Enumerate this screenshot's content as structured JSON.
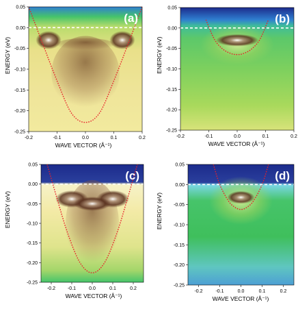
{
  "colors": {
    "fit_curve": "#e8202a",
    "fermi_line": "#ffffff",
    "panel_letter": "#ffffff",
    "colormap": [
      "#1c2b8c",
      "#2f7fd0",
      "#46c46a",
      "#9bd45e",
      "#f0e88a",
      "#8a5a3c",
      "#5a3220",
      "#ffffff"
    ]
  },
  "chart_data": [
    {
      "type": "heatmap",
      "panel": "(a)",
      "xlabel": "WAVE VECTOR (Å⁻¹)",
      "ylabel": "ENERGY (eV)",
      "xlim": [
        -0.2,
        0.2
      ],
      "ylim": [
        -0.25,
        0.05
      ],
      "x_ticks": [
        "-0.2",
        "-0.1",
        "0.0",
        "0.1",
        "0.2"
      ],
      "y_ticks": [
        "0.05",
        "0.00",
        "-0.05",
        "-0.10",
        "-0.15",
        "-0.20",
        "-0.25"
      ],
      "style": "measured_wide",
      "series": [
        {
          "kind": "fit-curve",
          "x": [
            -0.2,
            -0.15,
            -0.1,
            -0.05,
            0.0,
            0.05,
            0.1,
            0.15,
            0.2
          ],
          "y": [
            0.05,
            -0.04,
            -0.128,
            -0.205,
            -0.228,
            -0.205,
            -0.128,
            -0.04,
            0.05
          ]
        },
        {
          "kind": "fermi-level",
          "x": [
            -0.2,
            0.2
          ],
          "y": [
            0.0,
            0.0
          ]
        }
      ]
    },
    {
      "type": "heatmap",
      "panel": "(b)",
      "xlabel": "WAVE VECTOR (Å⁻¹)",
      "ylabel": "ENERGY (eV)",
      "xlim": [
        -0.2,
        0.2
      ],
      "ylim": [
        -0.25,
        0.05
      ],
      "x_ticks": [
        "-0.2",
        "-0.1",
        "0.0",
        "0.1",
        "0.2"
      ],
      "y_ticks": [
        "0.05",
        "0.00",
        "-0.05",
        "-0.10",
        "-0.15",
        "-0.20",
        "-0.25"
      ],
      "style": "measured_narrow",
      "series": [
        {
          "kind": "fit-curve",
          "x": [
            -0.11,
            -0.08,
            -0.05,
            -0.02,
            0.0,
            0.02,
            0.05,
            0.08,
            0.11
          ],
          "y": [
            0.02,
            -0.028,
            -0.052,
            -0.063,
            -0.065,
            -0.063,
            -0.052,
            -0.028,
            0.02
          ]
        },
        {
          "kind": "fermi-level",
          "x": [
            -0.2,
            0.2
          ],
          "y": [
            0.0,
            0.0
          ]
        }
      ]
    },
    {
      "type": "heatmap",
      "panel": "(c)",
      "xlabel": "WAVE VECTOR (Å⁻¹)",
      "ylabel": "ENERGY (eV)",
      "xlim": [
        -0.25,
        0.25
      ],
      "ylim": [
        -0.25,
        0.05
      ],
      "x_ticks": [
        "-0.2",
        "-0.1",
        "0.0",
        "0.1",
        "0.2"
      ],
      "y_ticks": [
        "0.05",
        "0.00",
        "-0.05",
        "-0.10",
        "-0.15",
        "-0.20",
        "-0.25"
      ],
      "style": "simulated_wide",
      "series": [
        {
          "kind": "fit-curve",
          "x": [
            -0.22,
            -0.17,
            -0.12,
            -0.06,
            0.0,
            0.06,
            0.12,
            0.17,
            0.22
          ],
          "y": [
            0.05,
            -0.04,
            -0.125,
            -0.2,
            -0.226,
            -0.2,
            -0.125,
            -0.04,
            0.05
          ]
        },
        {
          "kind": "fermi-level",
          "x": [
            -0.25,
            0.25
          ],
          "y": [
            0.0,
            0.0
          ]
        }
      ]
    },
    {
      "type": "heatmap",
      "panel": "(d)",
      "xlabel": "WAVE VECTOR (Å⁻¹)",
      "ylabel": "ENERGY (eV)",
      "xlim": [
        -0.25,
        0.25
      ],
      "ylim": [
        -0.25,
        0.05
      ],
      "x_ticks": [
        "-0.2",
        "-0.1",
        "0.0",
        "0.1",
        "0.2"
      ],
      "y_ticks": [
        "0.05",
        "0.00",
        "-0.05",
        "-0.10",
        "-0.15",
        "-0.20",
        "-0.25"
      ],
      "style": "simulated_narrow",
      "series": [
        {
          "kind": "fit-curve",
          "x": [
            -0.13,
            -0.1,
            -0.06,
            -0.03,
            0.0,
            0.03,
            0.06,
            0.1,
            0.13
          ],
          "y": [
            0.05,
            0.0,
            -0.04,
            -0.056,
            -0.062,
            -0.056,
            -0.04,
            0.0,
            0.05
          ]
        },
        {
          "kind": "fermi-level",
          "x": [
            -0.25,
            0.25
          ],
          "y": [
            0.0,
            0.0
          ]
        }
      ]
    }
  ]
}
